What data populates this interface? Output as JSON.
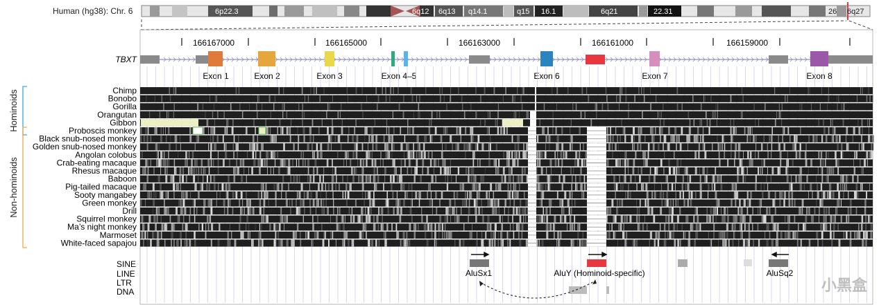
{
  "ideogram": {
    "label": "Human (hg38): Chr. 6",
    "bands": [
      "6p22.3",
      "6q12",
      "6q13",
      "q14.1",
      "q15",
      "16.1",
      "6q21",
      "22.31",
      "26",
      "6q27"
    ]
  },
  "coordinates": [
    "166167000",
    "166165000",
    "166163000",
    "166161000",
    "166159000"
  ],
  "gene": {
    "name": "TBXT",
    "exons": [
      {
        "label": "Exon 1",
        "color": "#e07a3b"
      },
      {
        "label": "Exon 2",
        "color": "#e5a63e"
      },
      {
        "label": "Exon 3",
        "color": "#e8d84a"
      },
      {
        "label": "Exon 4–5",
        "color": "#2eaa7e"
      },
      {
        "label": "Exon 6",
        "color": "#2b84bf"
      },
      {
        "label": "Exon 7",
        "color": "#d68fbd"
      },
      {
        "label": "Exon 8",
        "color": "#9b58a8"
      }
    ],
    "insertion_color": "#e8373f"
  },
  "groups": {
    "hominoids": {
      "label": "Hominoids",
      "color": "#3aa6df"
    },
    "non_hominoids": {
      "label": "Non-hominoids",
      "color": "#f4a54a"
    }
  },
  "species": [
    "Chimp",
    "Bonobo",
    "Gorilla",
    "Orangutan",
    "Gibbon",
    "Proboscis monkey",
    "Black snub-nosed monkey",
    "Golden snub-nosed monkey",
    "Angolan colobus",
    "Crab-eating macaque",
    "Rhesus macaque",
    "Baboon",
    "Pig-tailed macaque",
    "Sooty mangabey",
    "Green monkey",
    "Drill",
    "Squirrel monkey",
    "Ma’s night monkey",
    "Marmoset",
    "White-faced sapajou"
  ],
  "repeat_tracks": [
    "SINE",
    "LINE",
    "LTR",
    "DNA"
  ],
  "repeat_elements": [
    {
      "label": "AluSx1",
      "color": "#777777"
    },
    {
      "label": "AluY (Hominoid-specific)",
      "color": "#e8373f"
    },
    {
      "label": "AluSq2",
      "color": "#777777"
    }
  ],
  "watermark": "小黑盒"
}
